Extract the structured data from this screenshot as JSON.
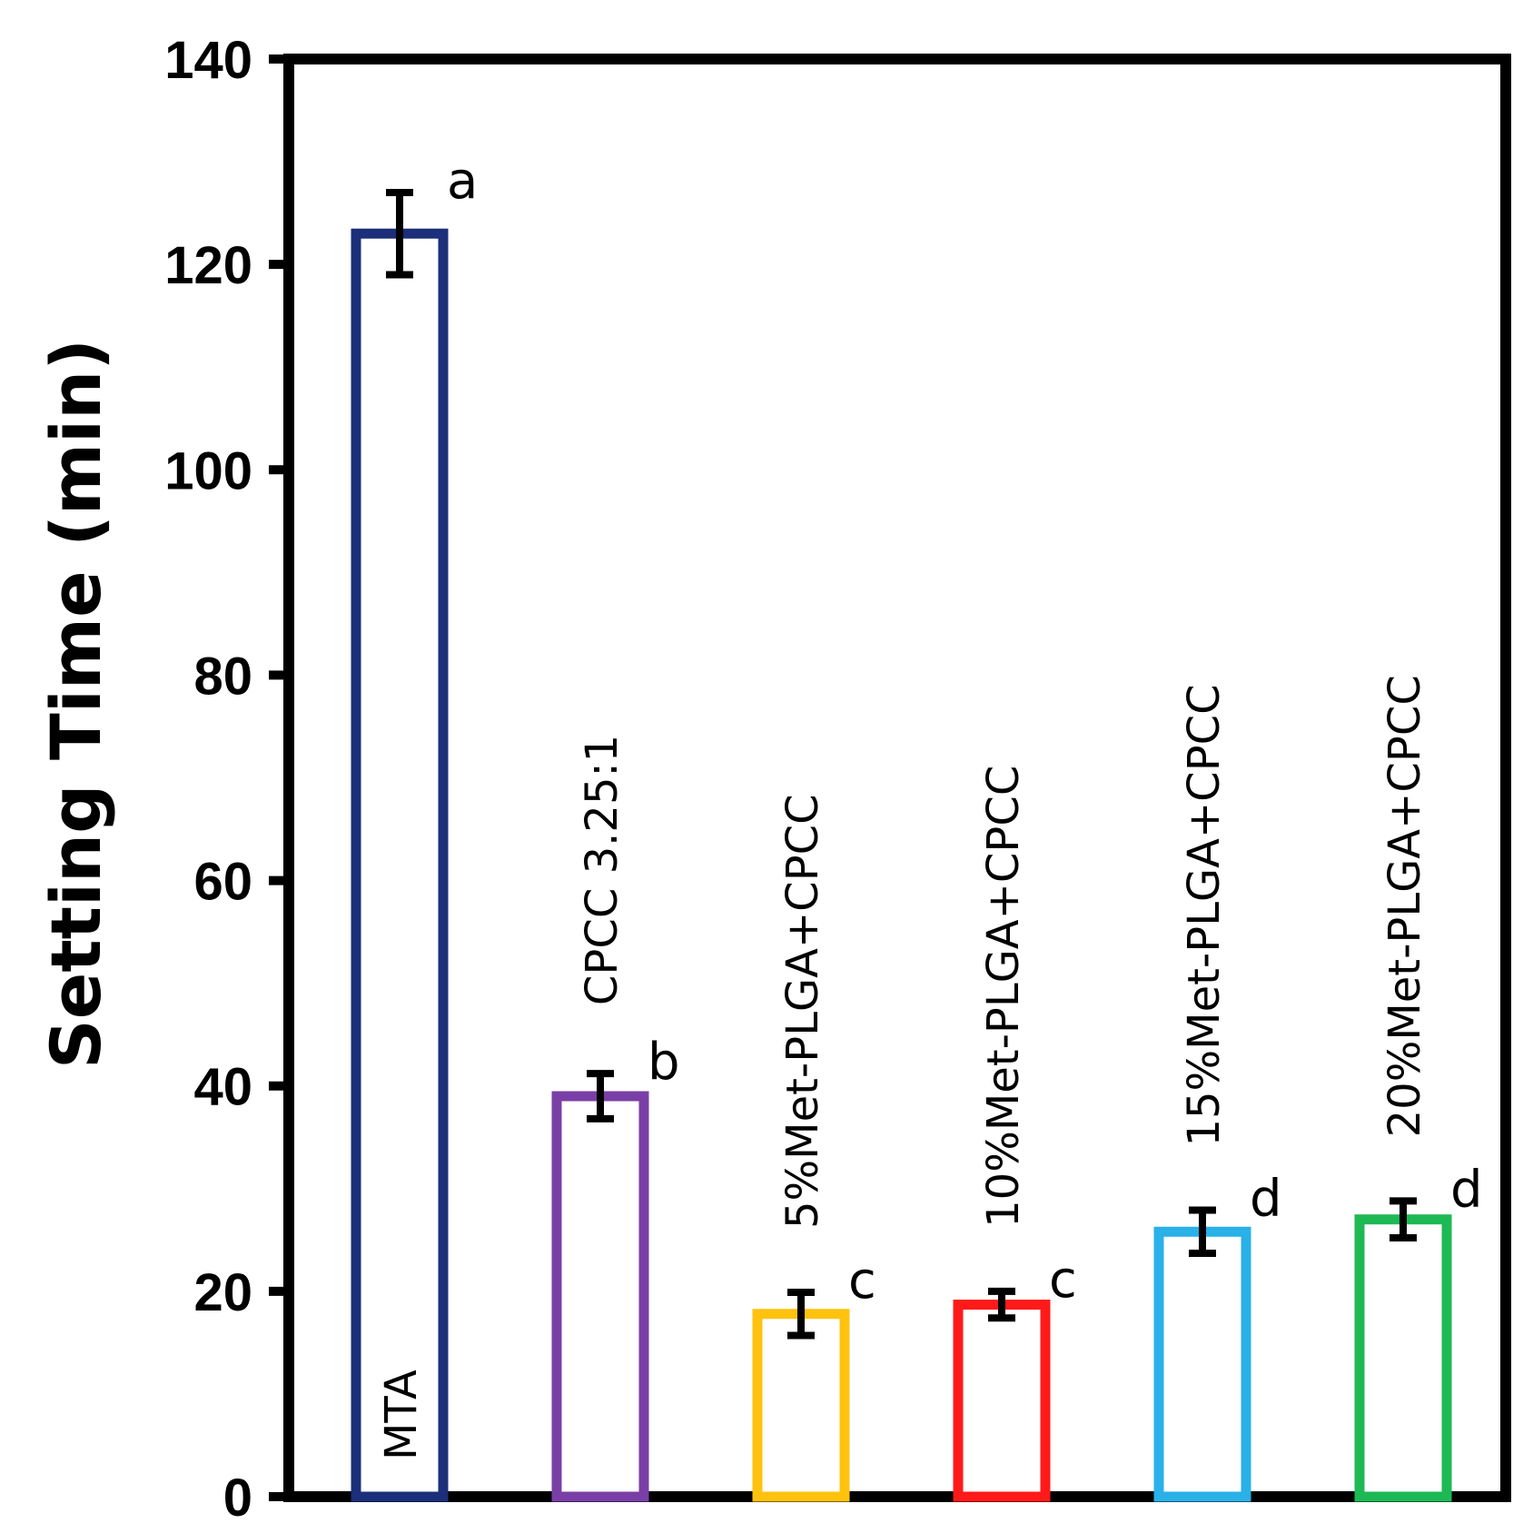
{
  "chart_data": {
    "type": "bar",
    "title": "",
    "xlabel": "",
    "ylabel": "Setting Time (min)",
    "ylim": [
      0,
      140
    ],
    "yticks": [
      0,
      20,
      40,
      60,
      80,
      100,
      120,
      140
    ],
    "grid": false,
    "legend": "none",
    "categories": [
      "MTA",
      "CPCC 3.25:1",
      "5%Met-PLGA+CPCC",
      "10%Met-PLGA+CPCC",
      "15%Met-PLGA+CPCC",
      "20%Met-PLGA+CPCC"
    ],
    "values": [
      123,
      39,
      17.8,
      18.7,
      25.8,
      27
    ],
    "errors": [
      4,
      2.2,
      2.1,
      1.3,
      2.1,
      1.8
    ],
    "significance": [
      "a",
      "b",
      "c",
      "c",
      "d",
      "d"
    ],
    "colors": [
      "#1b2f7a",
      "#7a3fa6",
      "#ffc20e",
      "#ff1a1a",
      "#29b1e8",
      "#1db954"
    ],
    "bar_fill": "#ffffff"
  }
}
